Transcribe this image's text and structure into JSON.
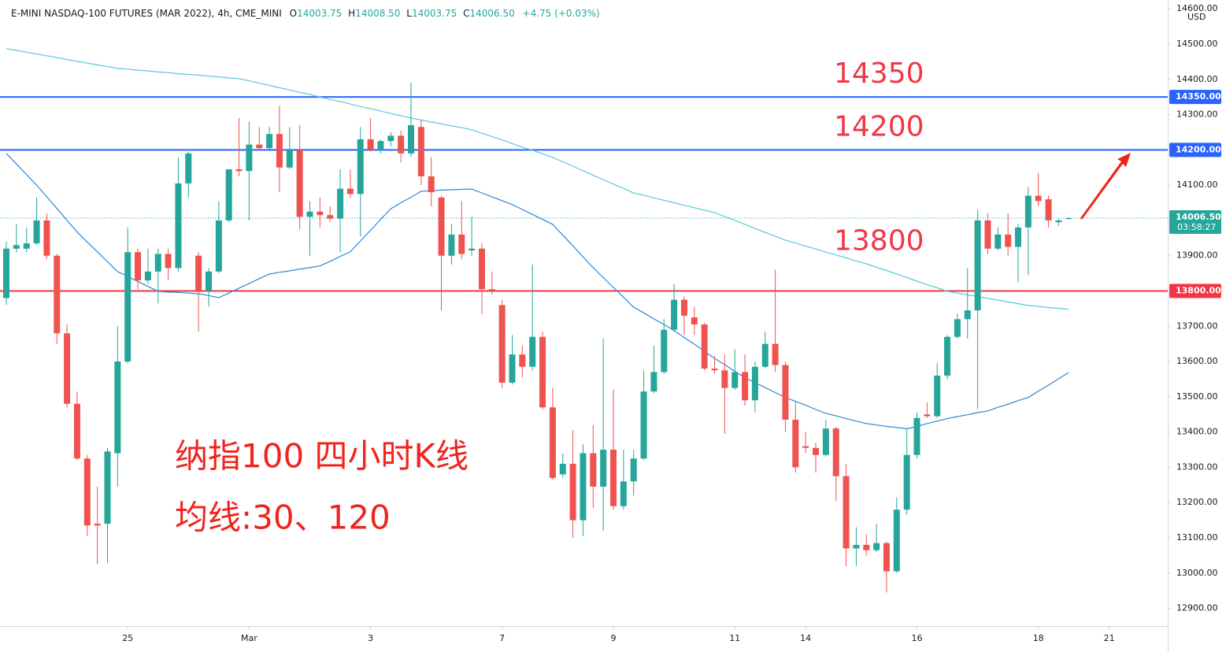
{
  "header": {
    "symbol": "E-MINI NASDAQ-100 FUTURES (MAR 2022), 4h, CME_MINI",
    "letters": [
      "O",
      "H",
      "L",
      "C"
    ],
    "values": [
      "14003.75",
      "14008.50",
      "14003.75",
      "14006.50"
    ],
    "change": "+4.75 (+0.03%)"
  },
  "chart_data": {
    "type": "candlestick",
    "currency": "USD",
    "countdown": "03:58:27",
    "annotations": [
      "纳指100 四小时K线",
      "均线:30、120"
    ],
    "up_color": "#26a69a",
    "down_color": "#ef5350",
    "grid": false,
    "ylim": [
      12850,
      14625
    ],
    "yticks": [
      {
        "value": 12900,
        "label": "12900.00"
      },
      {
        "value": 13000,
        "label": "13000.00"
      },
      {
        "value": 13100,
        "label": "13100.00"
      },
      {
        "value": 13200,
        "label": "13200.00"
      },
      {
        "value": 13300,
        "label": "13300.00"
      },
      {
        "value": 13400,
        "label": "13400.00"
      },
      {
        "value": 13500,
        "label": "13500.00"
      },
      {
        "value": 13600,
        "label": "13600.00"
      },
      {
        "value": 13700,
        "label": "13700.00"
      },
      {
        "value": 13800,
        "label": "13800.00"
      },
      {
        "value": 13900,
        "label": "13900.00"
      },
      {
        "value": 14000,
        "label": "14000.00"
      },
      {
        "value": 14100,
        "label": "14100.00"
      },
      {
        "value": 14200,
        "label": "14200.00"
      },
      {
        "value": 14300,
        "label": "14300.00"
      },
      {
        "value": 14400,
        "label": "14400.00"
      },
      {
        "value": 14500,
        "label": "14500.00"
      },
      {
        "value": 14600,
        "label": "14600.00"
      }
    ],
    "levels": [
      {
        "value": 14350,
        "label": "14350.00",
        "color": "#2962ff"
      },
      {
        "value": 14200,
        "label": "14200.00",
        "color": "#2962ff"
      },
      {
        "value": 13800,
        "label": "13800.00",
        "color": "#f23645"
      }
    ],
    "categories": [
      null,
      null,
      null,
      null,
      null,
      null,
      null,
      null,
      null,
      null,
      null,
      null,
      "25",
      null,
      null,
      null,
      null,
      null,
      null,
      null,
      null,
      null,
      null,
      null,
      "Mar",
      null,
      null,
      null,
      null,
      null,
      null,
      null,
      null,
      null,
      null,
      null,
      "3",
      null,
      null,
      null,
      null,
      null,
      null,
      null,
      null,
      null,
      null,
      null,
      null,
      "7",
      null,
      null,
      null,
      null,
      null,
      null,
      null,
      null,
      null,
      null,
      "9",
      null,
      null,
      null,
      null,
      null,
      null,
      null,
      null,
      null,
      null,
      null,
      "11",
      null,
      null,
      null,
      null,
      null,
      null,
      "14",
      null,
      null,
      null,
      null,
      null,
      null,
      null,
      null,
      null,
      null,
      "16",
      null,
      null,
      null,
      null,
      null,
      null,
      null,
      null,
      null,
      null,
      null,
      "18",
      null,
      null,
      null,
      null,
      null,
      null,
      "21"
    ],
    "open": [
      13780,
      13920,
      13920,
      13935,
      14000,
      13900,
      13680,
      13480,
      13325,
      13140,
      13140,
      13340,
      13600,
      13910,
      13830,
      13855,
      13905,
      13865,
      14105,
      13900,
      13800,
      13855,
      14000,
      14145,
      14140,
      14215,
      14205,
      14245,
      14150,
      14200,
      14010,
      14025,
      14015,
      14005,
      14090,
      14075,
      14230,
      14200,
      14225,
      14240,
      14190,
      14265,
      14125,
      14065,
      13900,
      13960,
      13915,
      13920,
      13805,
      13760,
      13540,
      13620,
      13585,
      13670,
      13470,
      13280,
      13310,
      13150,
      13340,
      13245,
      13350,
      13190,
      13260,
      13325,
      13515,
      13570,
      13690,
      13775,
      13725,
      13705,
      13580,
      13575,
      13525,
      13570,
      13490,
      13585,
      13650,
      13590,
      13435,
      13360,
      13355,
      13335,
      13410,
      13275,
      13070,
      13080,
      13065,
      13085,
      13005,
      13180,
      13335,
      13450,
      13445,
      13560,
      13670,
      13720,
      13745,
      14000,
      13920,
      13960,
      13925,
      13980,
      14070,
      14060,
      13995,
      14003.75,
      null,
      null,
      null,
      null
    ],
    "high": [
      13940,
      13990,
      13980,
      14065,
      14020,
      13905,
      13705,
      13515,
      13335,
      13245,
      13355,
      13700,
      13980,
      13920,
      13920,
      13920,
      13920,
      14180,
      14195,
      13910,
      13865,
      14055,
      14145,
      14290,
      14280,
      14265,
      14265,
      14325,
      14265,
      14270,
      14055,
      14065,
      14040,
      14145,
      14145,
      14265,
      14290,
      14230,
      14250,
      14255,
      14390,
      14285,
      14180,
      14070,
      13990,
      14055,
      14010,
      13935,
      13855,
      13775,
      13675,
      13645,
      13875,
      13685,
      13525,
      13340,
      13405,
      13365,
      13420,
      13665,
      13520,
      13350,
      13350,
      13575,
      13645,
      13720,
      13820,
      13785,
      13755,
      13710,
      13615,
      13620,
      13635,
      13620,
      13600,
      13685,
      13860,
      13600,
      13485,
      13400,
      13370,
      13435,
      13415,
      13310,
      13130,
      13110,
      13140,
      13090,
      13215,
      13410,
      13455,
      13485,
      13595,
      13675,
      13735,
      13865,
      14030,
      14020,
      13980,
      14020,
      13990,
      14095,
      14135,
      14070,
      14005,
      14008.5,
      null,
      null,
      null,
      null
    ],
    "low": [
      13760,
      13910,
      13910,
      13930,
      13890,
      13650,
      13470,
      13320,
      13105,
      13025,
      13030,
      13245,
      13595,
      13805,
      13820,
      13765,
      13830,
      13855,
      14065,
      13685,
      13755,
      13850,
      13995,
      14125,
      14000,
      14200,
      14200,
      14080,
      14145,
      13975,
      13900,
      13980,
      13995,
      13910,
      14065,
      13955,
      14195,
      14190,
      14210,
      14165,
      14180,
      14100,
      14040,
      13745,
      13875,
      13890,
      13900,
      13735,
      13790,
      13525,
      13535,
      13555,
      13575,
      13465,
      13265,
      13270,
      13100,
      13105,
      13185,
      13120,
      13180,
      13180,
      13220,
      13320,
      13510,
      13565,
      13685,
      13675,
      13675,
      13575,
      13565,
      13395,
      13520,
      13475,
      13455,
      13580,
      13570,
      13400,
      13285,
      13340,
      13285,
      13330,
      13205,
      13020,
      13020,
      13050,
      13060,
      12945,
      13000,
      13165,
      13325,
      13440,
      13440,
      13550,
      13665,
      13665,
      13465,
      13905,
      13915,
      13900,
      13825,
      13845,
      14040,
      13980,
      13985,
      14003.75,
      null,
      null,
      null,
      null
    ],
    "close": [
      13920,
      13930,
      13935,
      14000,
      13900,
      13680,
      13480,
      13325,
      13135,
      13135,
      13345,
      13600,
      13910,
      13830,
      13855,
      13905,
      13865,
      14105,
      14190,
      13800,
      13855,
      14000,
      14145,
      14140,
      14215,
      14205,
      14245,
      14150,
      14200,
      14010,
      14025,
      14015,
      14005,
      14090,
      14075,
      14230,
      14200,
      14225,
      14240,
      14190,
      14270,
      14125,
      14080,
      13900,
      13960,
      13905,
      13920,
      13805,
      13800,
      13540,
      13620,
      13585,
      13670,
      13470,
      13270,
      13310,
      13150,
      13340,
      13245,
      13350,
      13190,
      13260,
      13325,
      13515,
      13570,
      13690,
      13775,
      13730,
      13705,
      13580,
      13575,
      13525,
      13570,
      13490,
      13585,
      13650,
      13590,
      13435,
      13300,
      13355,
      13335,
      13410,
      13275,
      13070,
      13080,
      13065,
      13085,
      13005,
      13180,
      13335,
      13440,
      13445,
      13560,
      13670,
      13720,
      13745,
      14000,
      13920,
      13960,
      13925,
      13980,
      14070,
      14055,
      14000,
      14000,
      14006.5,
      null,
      null,
      null,
      null
    ],
    "series": [
      {
        "color": "#2f86d6",
        "values": [
          14190,
          14160,
          14130,
          14100,
          14067,
          14034,
          14000,
          13967,
          13939,
          13911,
          13883,
          13855,
          13841,
          13827,
          13813,
          13799,
          13797,
          13796,
          13794,
          13792,
          13787,
          13781,
          13794,
          13808,
          13821,
          13835,
          13848,
          13853,
          13857,
          13862,
          13866,
          13871,
          13884,
          13898,
          13911,
          13942,
          13972,
          14003,
          14033,
          14050,
          14066,
          14083,
          14084,
          14086,
          14087,
          14088,
          14089,
          14078,
          14067,
          14056,
          14045,
          14031,
          14017,
          14003,
          13989,
          13958,
          13928,
          13897,
          13866,
          13838,
          13810,
          13782,
          13754,
          13738,
          13721,
          13705,
          13688,
          13668,
          13649,
          13629,
          13609,
          13591,
          13572,
          13554,
          13540,
          13526,
          13512,
          13498,
          13487,
          13476,
          13464,
          13453,
          13446,
          13438,
          13431,
          13424,
          13420,
          13416,
          13413,
          13409,
          13416,
          13424,
          13431,
          13438,
          13444,
          13449,
          13455,
          13460,
          13470,
          13479,
          13489,
          13498,
          13516,
          13533,
          13551,
          13569,
          null,
          null,
          null,
          null
        ]
      },
      {
        "color": "#5ac8dc",
        "values": [
          14487,
          14482,
          14477,
          14472,
          14467,
          14462,
          14456,
          14451,
          14446,
          14441,
          14436,
          14431,
          14429,
          14426,
          14424,
          14421,
          14419,
          14416,
          14414,
          14412,
          14409,
          14407,
          14404,
          14402,
          14396,
          14389,
          14383,
          14376,
          14370,
          14363,
          14357,
          14350,
          14343,
          14337,
          14330,
          14323,
          14317,
          14310,
          14303,
          14297,
          14290,
          14285,
          14279,
          14274,
          14268,
          14263,
          14257,
          14247,
          14238,
          14228,
          14218,
          14208,
          14199,
          14189,
          14179,
          14166,
          14154,
          14141,
          14128,
          14116,
          14103,
          14091,
          14078,
          14071,
          14064,
          14057,
          14050,
          14043,
          14036,
          14029,
          14022,
          14011,
          14000,
          13989,
          13977,
          13966,
          13955,
          13944,
          13936,
          13927,
          13919,
          13910,
          13902,
          13894,
          13885,
          13877,
          13867,
          13858,
          13848,
          13838,
          13828,
          13818,
          13809,
          13799,
          13794,
          13789,
          13784,
          13779,
          13774,
          13769,
          13764,
          13759,
          13756,
          13753,
          13751,
          13748,
          null,
          null,
          null,
          null
        ]
      }
    ]
  }
}
